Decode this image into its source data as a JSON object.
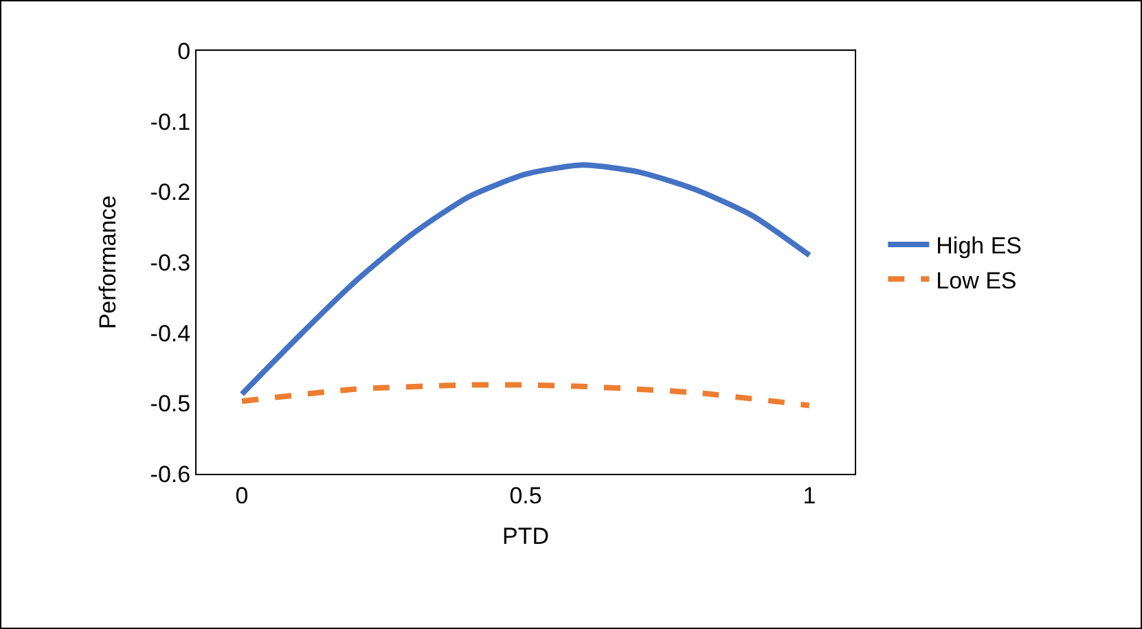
{
  "chart_data": {
    "type": "line",
    "xlabel": "PTD",
    "ylabel": "Performance",
    "xlim": [
      -0.08,
      1.08
    ],
    "xticks": [
      0,
      0.5,
      1
    ],
    "ylim": [
      -0.6,
      0
    ],
    "yticks": [
      0,
      -0.1,
      -0.2,
      -0.3,
      -0.4,
      -0.5,
      -0.6
    ],
    "grid": false,
    "legend": "right",
    "marker": "none",
    "series": [
      {
        "name": "High ES",
        "color": "#4472c4",
        "line_style": "solid",
        "x": [
          0,
          0.1,
          0.2,
          0.3,
          0.4,
          0.5,
          0.6,
          0.7,
          0.8,
          0.9,
          1
        ],
        "values": [
          -0.487,
          -0.405,
          -0.327,
          -0.26,
          -0.207,
          -0.175,
          -0.162,
          -0.172,
          -0.197,
          -0.234,
          -0.29
        ]
      },
      {
        "name": "Low ES",
        "color": "#ed7d31",
        "line_style": "dashed",
        "x": [
          0,
          0.2,
          0.4,
          0.5,
          0.6,
          0.8,
          1
        ],
        "values": [
          -0.497,
          -0.48,
          -0.474,
          -0.474,
          -0.476,
          -0.485,
          -0.503
        ]
      }
    ]
  }
}
